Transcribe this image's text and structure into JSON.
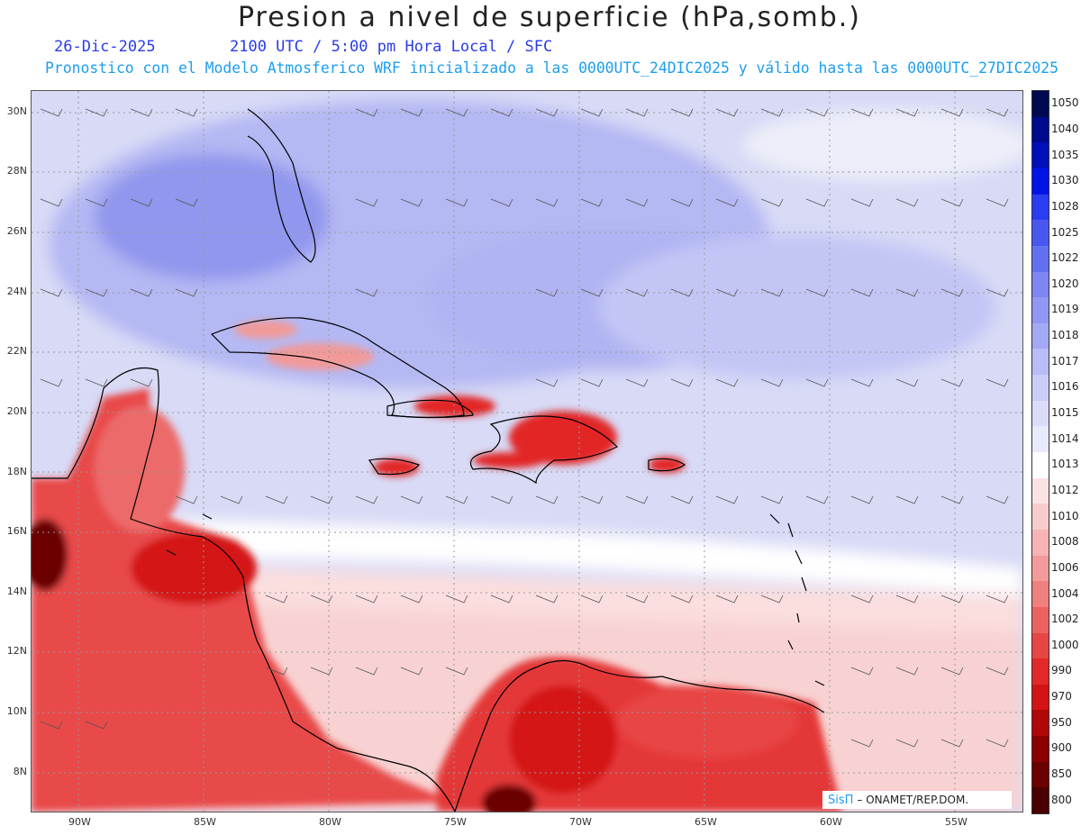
{
  "header": {
    "title": "Presion a nivel de superficie (hPa,somb.)",
    "date": "26-Dic-2025",
    "time_info": "2100 UTC / 5:00 pm Hora Local / SFC",
    "model_info": "Pronostico con el Modelo Atmosferico WRF inicializado a las 0000UTC_24DIC2025 y válido hasta las  0000UTC_27DIC2025"
  },
  "map": {
    "lat_labels": [
      "30N",
      "28N",
      "26N",
      "24N",
      "22N",
      "20N",
      "18N",
      "16N",
      "14N",
      "12N",
      "10N",
      "8N"
    ],
    "lon_labels": [
      "90W",
      "85W",
      "80W",
      "75W",
      "70W",
      "65W",
      "60W",
      "55W"
    ],
    "colors": {
      "high": "#8d8fe8",
      "mid": "#d9dbf7",
      "neutral": "#ffffff",
      "low": "#f9c9c9",
      "very_low": "#e41e1e",
      "extreme": "#6a0000",
      "land_outline": "#000000"
    }
  },
  "legend": {
    "levels": [
      "1050",
      "1040",
      "1035",
      "1030",
      "1028",
      "1025",
      "1022",
      "1020",
      "1019",
      "1018",
      "1017",
      "1016",
      "1015",
      "1014",
      "1013",
      "1012",
      "1010",
      "1008",
      "1006",
      "1004",
      "1002",
      "1000",
      "990",
      "970",
      "950",
      "900",
      "850",
      "800"
    ],
    "colors": [
      "#000a50",
      "#000a8c",
      "#0010b8",
      "#0014e6",
      "#2a3df2",
      "#4857f0",
      "#6470f2",
      "#7d86f2",
      "#9098f3",
      "#a3a9f5",
      "#b8bcf7",
      "#cacdf8",
      "#dadcf9",
      "#e9eafb",
      "#ffffff",
      "#fbe3e3",
      "#f9cccc",
      "#f6b4b4",
      "#f39a9a",
      "#f07f7f",
      "#ec6262",
      "#e84545",
      "#e22828",
      "#d41414",
      "#b00808",
      "#8a0000",
      "#6a0000",
      "#4a0000"
    ]
  },
  "credit": {
    "brand": "SisΠ",
    "text": "– ONAMET/REP.DOM."
  }
}
